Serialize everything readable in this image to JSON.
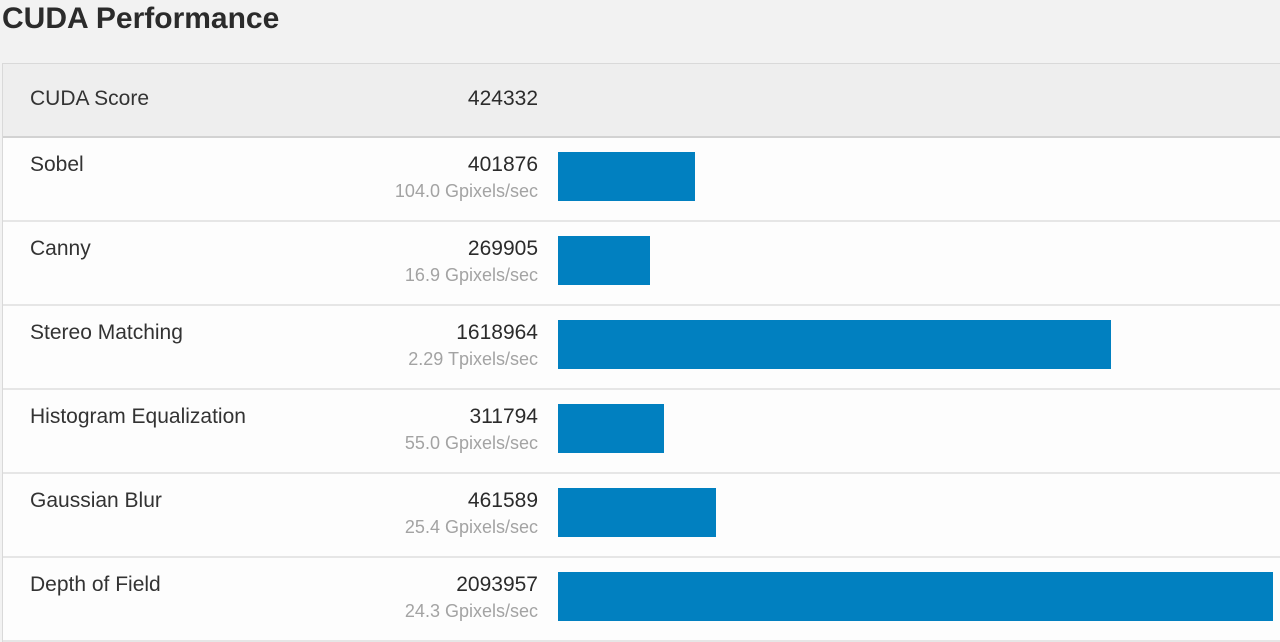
{
  "page": {
    "title": "CUDA Performance"
  },
  "summary": {
    "label": "CUDA Score",
    "score": "424332"
  },
  "colors": {
    "bar": "#0180c0",
    "header_bg": "#eeeeee",
    "row_bg": "#fdfdfd",
    "secondary_text": "#a3a3a3"
  },
  "rows": [
    {
      "name": "Sobel",
      "score": "401876",
      "rate": "104.0 Gpixels/sec",
      "value": 401876
    },
    {
      "name": "Canny",
      "score": "269905",
      "rate": "16.9 Gpixels/sec",
      "value": 269905
    },
    {
      "name": "Stereo Matching",
      "score": "1618964",
      "rate": "2.29 Tpixels/sec",
      "value": 1618964
    },
    {
      "name": "Histogram Equalization",
      "score": "311794",
      "rate": "55.0 Gpixels/sec",
      "value": 311794
    },
    {
      "name": "Gaussian Blur",
      "score": "461589",
      "rate": "25.4 Gpixels/sec",
      "value": 461589
    },
    {
      "name": "Depth of Field",
      "score": "2093957",
      "rate": "24.3 Gpixels/sec",
      "value": 2093957
    }
  ],
  "chart_data": {
    "type": "bar",
    "orientation": "horizontal",
    "title": "CUDA Performance",
    "overall_score": {
      "label": "CUDA Score",
      "value": 424332
    },
    "categories": [
      "Sobel",
      "Canny",
      "Stereo Matching",
      "Histogram Equalization",
      "Gaussian Blur",
      "Depth of Field"
    ],
    "values": [
      401876,
      269905,
      1618964,
      311794,
      461589,
      2093957
    ],
    "annotations": [
      "104.0 Gpixels/sec",
      "16.9 Gpixels/sec",
      "2.29 Tpixels/sec",
      "55.0 Gpixels/sec",
      "25.4 Gpixels/sec",
      "24.3 Gpixels/sec"
    ],
    "xlabel": "",
    "ylabel": "",
    "xlim": [
      0,
      2093957
    ],
    "grid": false,
    "legend": null
  }
}
